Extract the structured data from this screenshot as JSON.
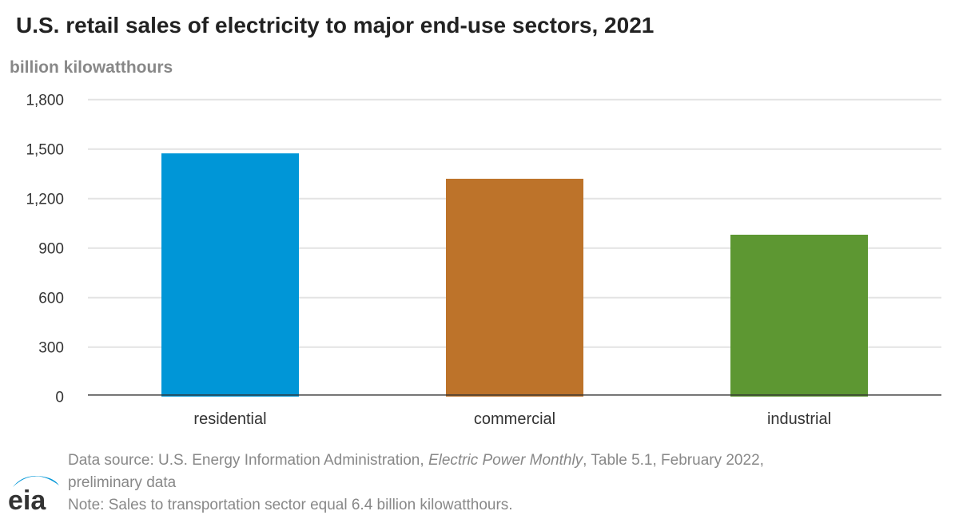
{
  "title": "U.S. retail sales of electricity to major end-use sectors, 2021",
  "chart_data": {
    "type": "bar",
    "title": "U.S. retail sales of electricity to major end-use sectors, 2021",
    "ylabel": "billion kilowatthours",
    "xlabel": "",
    "categories": [
      "residential",
      "commercial",
      "industrial"
    ],
    "values": [
      1474,
      1320,
      981
    ],
    "colors": [
      "#0096d7",
      "#bd732a",
      "#5d9732"
    ],
    "ylim": [
      0,
      1800
    ],
    "yticks": [
      0,
      300,
      600,
      900,
      1200,
      1500,
      1800
    ],
    "ytick_labels": [
      "0",
      "300",
      "600",
      "900",
      "1,200",
      "1,500",
      "1,800"
    ],
    "grid": true,
    "legend": "none"
  },
  "footer": {
    "source_prefix": "Data source: U.S. Energy Information Administration, ",
    "source_italic": "Electric Power Monthly",
    "source_suffix": ", Table 5.1, February 2022,",
    "source_line2": "preliminary data",
    "note": "Note: Sales to transportation sector equal 6.4 billion kilowatthours."
  },
  "logo": {
    "text": "eia",
    "color": "#0096d7"
  }
}
